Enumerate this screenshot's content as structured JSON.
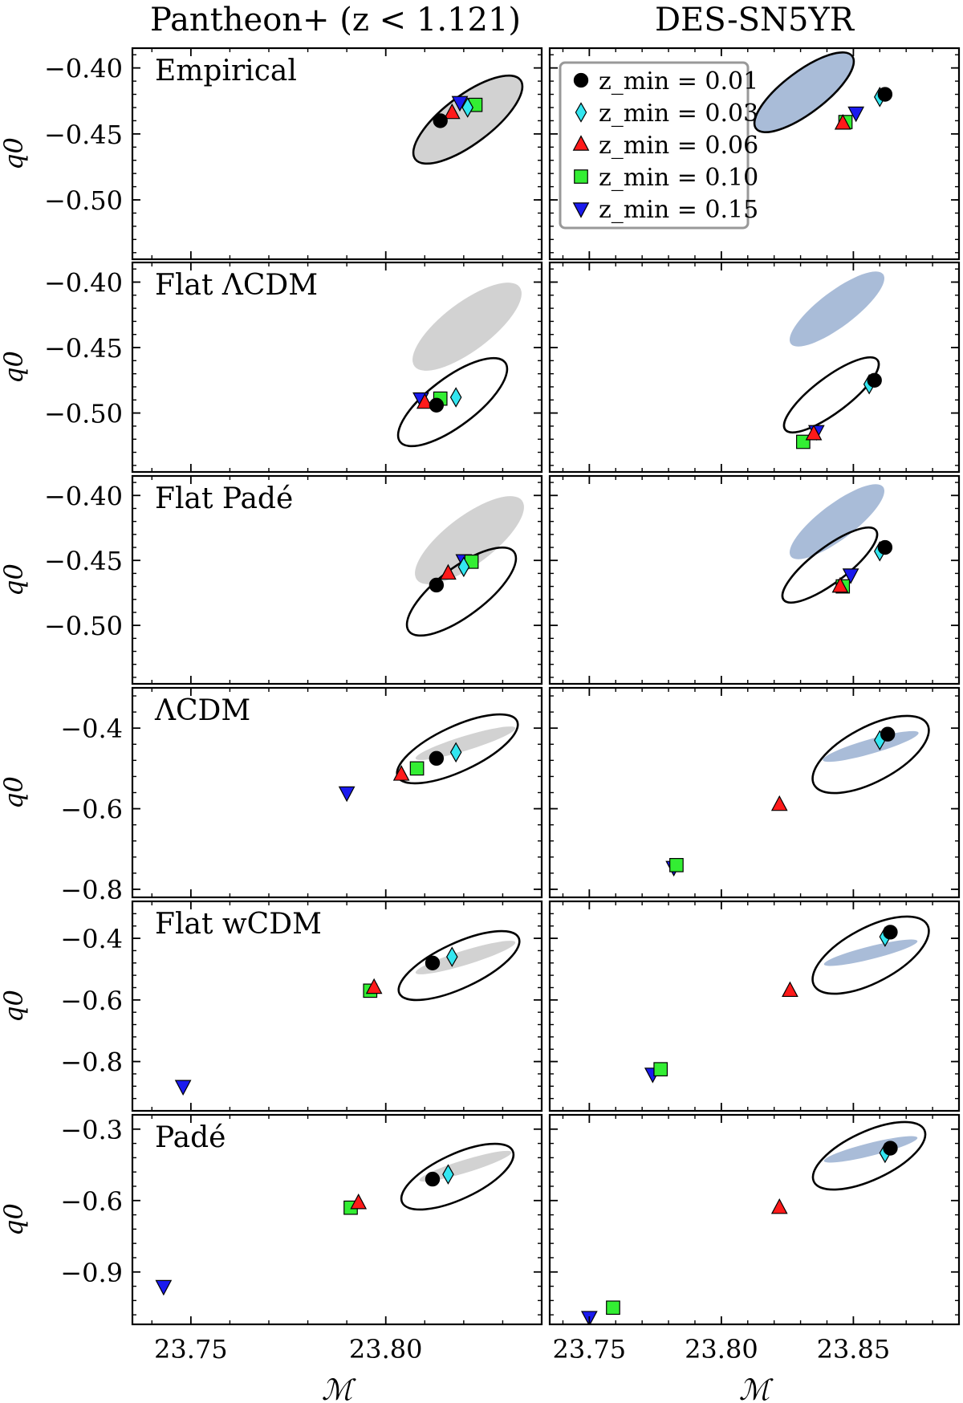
{
  "figure": {
    "columns": [
      {
        "title": "Pantheon+ (z < 1.121)"
      },
      {
        "title": "DES-SN5YR"
      }
    ],
    "ylabel": "q0",
    "xlabel": "ℳ",
    "xticks_left": [
      "23.75",
      "23.80"
    ],
    "xticks_right": [
      "23.75",
      "23.80",
      "23.85"
    ],
    "rows": [
      {
        "label": "Empirical",
        "yticks": [
          "−0.40",
          "−0.45",
          "−0.50"
        ]
      },
      {
        "label": "Flat ΛCDM",
        "yticks": [
          "−0.40",
          "−0.45",
          "−0.50"
        ]
      },
      {
        "label": "Flat Padé",
        "yticks": [
          "−0.40",
          "−0.45",
          "−0.50"
        ]
      },
      {
        "label": "ΛCDM",
        "yticks": [
          "−0.4",
          "−0.6",
          "−0.8"
        ]
      },
      {
        "label": "Flat wCDM",
        "yticks": [
          "−0.4",
          "−0.6",
          "−0.8"
        ]
      },
      {
        "label": "Padé",
        "yticks": [
          "−0.3",
          "−0.6",
          "−0.9"
        ]
      }
    ],
    "legend": [
      {
        "label": "z_min = 0.01",
        "marker": "circle",
        "color": "#000000"
      },
      {
        "label": "z_min = 0.03",
        "marker": "diamond",
        "color": "#33e6f0"
      },
      {
        "label": "z_min = 0.06",
        "marker": "triangle-up",
        "color": "#ff1a1a"
      },
      {
        "label": "z_min = 0.10",
        "marker": "square",
        "color": "#33ee33"
      },
      {
        "label": "z_min = 0.15",
        "marker": "triangle-down",
        "color": "#1a1aee"
      }
    ],
    "colors": {
      "pantheon_fill": "#d2d2d2",
      "des_fill": "#a9bcd8",
      "contour": "#000000"
    }
  },
  "chart_data": [
    {
      "type": "scatter",
      "panel": "Pantheon+ / Empirical",
      "xlim": [
        23.735,
        23.84
      ],
      "ylim": [
        -0.545,
        -0.385
      ],
      "points": [
        {
          "zmin": 0.01,
          "x": 23.814,
          "y": -0.44
        },
        {
          "zmin": 0.03,
          "x": 23.821,
          "y": -0.43
        },
        {
          "zmin": 0.06,
          "x": 23.817,
          "y": -0.434
        },
        {
          "zmin": 0.1,
          "x": 23.823,
          "y": -0.428
        },
        {
          "zmin": 0.15,
          "x": 23.819,
          "y": -0.426
        }
      ]
    },
    {
      "type": "scatter",
      "panel": "DES-SN5YR / Empirical",
      "xlim": [
        23.735,
        23.89
      ],
      "ylim": [
        -0.545,
        -0.385
      ],
      "points": [
        {
          "zmin": 0.01,
          "x": 23.862,
          "y": -0.42
        },
        {
          "zmin": 0.03,
          "x": 23.86,
          "y": -0.422
        },
        {
          "zmin": 0.06,
          "x": 23.846,
          "y": -0.442
        },
        {
          "zmin": 0.1,
          "x": 23.847,
          "y": -0.441
        },
        {
          "zmin": 0.15,
          "x": 23.851,
          "y": -0.434
        }
      ]
    },
    {
      "type": "scatter",
      "panel": "Pantheon+ / Flat ΛCDM",
      "xlim": [
        23.735,
        23.84
      ],
      "ylim": [
        -0.545,
        -0.385
      ],
      "points": [
        {
          "zmin": 0.01,
          "x": 23.813,
          "y": -0.494
        },
        {
          "zmin": 0.03,
          "x": 23.818,
          "y": -0.488
        },
        {
          "zmin": 0.06,
          "x": 23.81,
          "y": -0.492
        },
        {
          "zmin": 0.1,
          "x": 23.814,
          "y": -0.489
        },
        {
          "zmin": 0.15,
          "x": 23.809,
          "y": -0.489
        }
      ]
    },
    {
      "type": "scatter",
      "panel": "DES-SN5YR / Flat ΛCDM",
      "xlim": [
        23.735,
        23.89
      ],
      "ylim": [
        -0.545,
        -0.385
      ],
      "points": [
        {
          "zmin": 0.01,
          "x": 23.858,
          "y": -0.475
        },
        {
          "zmin": 0.03,
          "x": 23.856,
          "y": -0.478
        },
        {
          "zmin": 0.06,
          "x": 23.835,
          "y": -0.516
        },
        {
          "zmin": 0.1,
          "x": 23.831,
          "y": -0.522
        },
        {
          "zmin": 0.15,
          "x": 23.836,
          "y": -0.514
        }
      ]
    },
    {
      "type": "scatter",
      "panel": "Pantheon+ / Flat Padé",
      "xlim": [
        23.735,
        23.84
      ],
      "ylim": [
        -0.545,
        -0.385
      ],
      "points": [
        {
          "zmin": 0.01,
          "x": 23.813,
          "y": -0.469
        },
        {
          "zmin": 0.03,
          "x": 23.82,
          "y": -0.455
        },
        {
          "zmin": 0.06,
          "x": 23.816,
          "y": -0.46
        },
        {
          "zmin": 0.1,
          "x": 23.822,
          "y": -0.451
        },
        {
          "zmin": 0.15,
          "x": 23.82,
          "y": -0.45
        }
      ]
    },
    {
      "type": "scatter",
      "panel": "DES-SN5YR / Flat Padé",
      "xlim": [
        23.735,
        23.89
      ],
      "ylim": [
        -0.545,
        -0.385
      ],
      "points": [
        {
          "zmin": 0.01,
          "x": 23.862,
          "y": -0.44
        },
        {
          "zmin": 0.03,
          "x": 23.86,
          "y": -0.443
        },
        {
          "zmin": 0.06,
          "x": 23.845,
          "y": -0.47
        },
        {
          "zmin": 0.1,
          "x": 23.846,
          "y": -0.47
        },
        {
          "zmin": 0.15,
          "x": 23.849,
          "y": -0.461
        }
      ]
    },
    {
      "type": "scatter",
      "panel": "Pantheon+ / ΛCDM",
      "xlim": [
        23.735,
        23.84
      ],
      "ylim": [
        -0.82,
        -0.3
      ],
      "points": [
        {
          "zmin": 0.01,
          "x": 23.813,
          "y": -0.475
        },
        {
          "zmin": 0.03,
          "x": 23.818,
          "y": -0.46
        },
        {
          "zmin": 0.06,
          "x": 23.804,
          "y": -0.515
        },
        {
          "zmin": 0.1,
          "x": 23.808,
          "y": -0.5
        },
        {
          "zmin": 0.15,
          "x": 23.79,
          "y": -0.56
        }
      ]
    },
    {
      "type": "scatter",
      "panel": "DES-SN5YR / ΛCDM",
      "xlim": [
        23.735,
        23.89
      ],
      "ylim": [
        -0.82,
        -0.3
      ],
      "points": [
        {
          "zmin": 0.01,
          "x": 23.863,
          "y": -0.415
        },
        {
          "zmin": 0.03,
          "x": 23.86,
          "y": -0.43
        },
        {
          "zmin": 0.06,
          "x": 23.822,
          "y": -0.59
        },
        {
          "zmin": 0.1,
          "x": 23.783,
          "y": -0.74
        },
        {
          "zmin": 0.15,
          "x": 23.782,
          "y": -0.745
        }
      ]
    },
    {
      "type": "scatter",
      "panel": "Pantheon+ / Flat wCDM",
      "xlim": [
        23.735,
        23.84
      ],
      "ylim": [
        -0.96,
        -0.28
      ],
      "points": [
        {
          "zmin": 0.01,
          "x": 23.812,
          "y": -0.48
        },
        {
          "zmin": 0.03,
          "x": 23.817,
          "y": -0.46
        },
        {
          "zmin": 0.06,
          "x": 23.797,
          "y": -0.56
        },
        {
          "zmin": 0.1,
          "x": 23.796,
          "y": -0.57
        },
        {
          "zmin": 0.15,
          "x": 23.748,
          "y": -0.88
        }
      ]
    },
    {
      "type": "scatter",
      "panel": "DES-SN5YR / Flat wCDM",
      "xlim": [
        23.735,
        23.89
      ],
      "ylim": [
        -0.96,
        -0.28
      ],
      "points": [
        {
          "zmin": 0.01,
          "x": 23.864,
          "y": -0.38
        },
        {
          "zmin": 0.03,
          "x": 23.862,
          "y": -0.395
        },
        {
          "zmin": 0.06,
          "x": 23.826,
          "y": -0.57
        },
        {
          "zmin": 0.1,
          "x": 23.777,
          "y": -0.825
        },
        {
          "zmin": 0.15,
          "x": 23.774,
          "y": -0.84
        }
      ]
    },
    {
      "type": "scatter",
      "panel": "Pantheon+ / Padé",
      "xlim": [
        23.735,
        23.84
      ],
      "ylim": [
        -1.12,
        -0.24
      ],
      "points": [
        {
          "zmin": 0.01,
          "x": 23.812,
          "y": -0.51
        },
        {
          "zmin": 0.03,
          "x": 23.816,
          "y": -0.49
        },
        {
          "zmin": 0.06,
          "x": 23.793,
          "y": -0.61
        },
        {
          "zmin": 0.1,
          "x": 23.791,
          "y": -0.63
        },
        {
          "zmin": 0.15,
          "x": 23.743,
          "y": -0.96
        }
      ]
    },
    {
      "type": "scatter",
      "panel": "DES-SN5YR / Padé",
      "xlim": [
        23.735,
        23.89
      ],
      "ylim": [
        -1.12,
        -0.24
      ],
      "points": [
        {
          "zmin": 0.01,
          "x": 23.864,
          "y": -0.38
        },
        {
          "zmin": 0.03,
          "x": 23.862,
          "y": -0.4
        },
        {
          "zmin": 0.06,
          "x": 23.822,
          "y": -0.63
        },
        {
          "zmin": 0.1,
          "x": 23.759,
          "y": -1.05
        },
        {
          "zmin": 0.15,
          "x": 23.75,
          "y": -1.09
        }
      ]
    }
  ]
}
